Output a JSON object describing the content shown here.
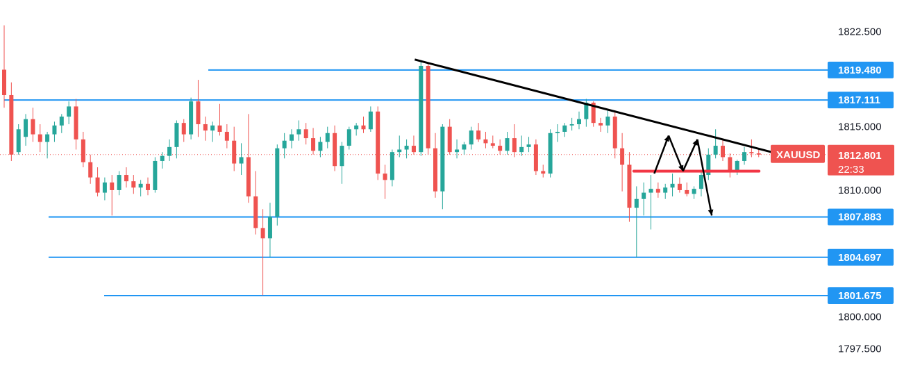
{
  "chart_data": {
    "type": "candlestick",
    "symbol": "XAUUSD",
    "last_price": 1812.801,
    "last_price_label": "1812.801",
    "countdown": "22:33",
    "colors": {
      "up": "#26a69a",
      "down": "#ef5350",
      "level": "#2196f3",
      "trend": "#000000",
      "neckline": "#f23645",
      "price_line": "#ef5350"
    },
    "y_axis": {
      "range": [
        1796.2,
        1825.0
      ],
      "ticks": [
        {
          "value": 1822.5,
          "label": "1822.500"
        },
        {
          "value": 1815.0,
          "label": "1815.000"
        },
        {
          "value": 1810.0,
          "label": "1810.000"
        },
        {
          "value": 1800.0,
          "label": "1800.000"
        },
        {
          "value": 1797.5,
          "label": "1797.500"
        }
      ]
    },
    "levels": [
      {
        "value": 1819.48,
        "label": "1819.480",
        "x_from_bar": 43
      },
      {
        "value": 1817.111,
        "label": "1817.111",
        "x_from_bar": 0
      },
      {
        "value": 1807.883,
        "label": "1807.883",
        "x_from_bar": 0
      },
      {
        "value": 1804.697,
        "label": "1804.697",
        "x_from_bar": 0
      },
      {
        "value": 1801.675,
        "label": "1801.675",
        "x_from_bar": 13
      }
    ],
    "candles": [
      [
        1819.5,
        1823.0,
        1816.5,
        1817.5
      ],
      [
        1817.5,
        1818.5,
        1812.3,
        1812.8
      ],
      [
        1813.0,
        1815.2,
        1812.8,
        1814.8
      ],
      [
        1814.2,
        1816.0,
        1813.5,
        1815.6
      ],
      [
        1815.6,
        1816.5,
        1813.8,
        1814.4
      ],
      [
        1814.4,
        1815.2,
        1813.0,
        1813.8
      ],
      [
        1813.8,
        1814.6,
        1812.5,
        1814.4
      ],
      [
        1814.4,
        1815.4,
        1813.8,
        1815.1
      ],
      [
        1815.1,
        1816.0,
        1814.5,
        1815.8
      ],
      [
        1815.8,
        1817.0,
        1815.2,
        1816.6
      ],
      [
        1816.6,
        1817.2,
        1813.2,
        1814.0
      ],
      [
        1814.0,
        1814.6,
        1811.8,
        1812.2
      ],
      [
        1812.2,
        1812.8,
        1810.5,
        1811.0
      ],
      [
        1811.0,
        1811.8,
        1809.5,
        1809.8
      ],
      [
        1809.8,
        1811.0,
        1809.2,
        1810.6
      ],
      [
        1810.6,
        1811.2,
        1808.0,
        1810.0
      ],
      [
        1810.0,
        1811.5,
        1809.6,
        1811.2
      ],
      [
        1811.2,
        1811.8,
        1810.2,
        1810.7
      ],
      [
        1810.7,
        1811.2,
        1809.7,
        1810.2
      ],
      [
        1810.2,
        1810.8,
        1809.5,
        1810.5
      ],
      [
        1810.5,
        1811.0,
        1809.6,
        1810.0
      ],
      [
        1810.0,
        1812.6,
        1809.8,
        1812.3
      ],
      [
        1812.3,
        1813.0,
        1811.7,
        1812.7
      ],
      [
        1812.7,
        1814.0,
        1812.3,
        1813.4
      ],
      [
        1813.4,
        1815.5,
        1812.5,
        1815.3
      ],
      [
        1815.3,
        1815.6,
        1813.8,
        1814.4
      ],
      [
        1814.4,
        1817.3,
        1814.0,
        1817.0
      ],
      [
        1817.0,
        1818.7,
        1814.2,
        1815.2
      ],
      [
        1815.2,
        1815.8,
        1813.9,
        1814.7
      ],
      [
        1814.7,
        1815.4,
        1813.8,
        1815.1
      ],
      [
        1815.1,
        1816.8,
        1814.3,
        1814.6
      ],
      [
        1814.6,
        1815.2,
        1813.3,
        1813.9
      ],
      [
        1813.9,
        1815.0,
        1811.5,
        1812.1
      ],
      [
        1812.1,
        1813.7,
        1811.2,
        1812.6
      ],
      [
        1812.6,
        1816.0,
        1809.0,
        1809.5
      ],
      [
        1809.5,
        1811.5,
        1806.5,
        1807.0
      ],
      [
        1807.0,
        1808.5,
        1801.7,
        1806.2
      ],
      [
        1806.2,
        1809.0,
        1804.7,
        1807.9
      ],
      [
        1807.9,
        1813.6,
        1807.2,
        1813.3
      ],
      [
        1813.3,
        1814.5,
        1812.5,
        1813.9
      ],
      [
        1813.9,
        1814.8,
        1813.3,
        1814.4
      ],
      [
        1814.4,
        1815.5,
        1813.9,
        1814.8
      ],
      [
        1814.8,
        1815.3,
        1813.6,
        1814.1
      ],
      [
        1814.1,
        1814.9,
        1812.8,
        1813.1
      ],
      [
        1813.1,
        1814.2,
        1812.6,
        1813.8
      ],
      [
        1813.8,
        1815.0,
        1813.3,
        1814.5
      ],
      [
        1814.5,
        1815.1,
        1811.5,
        1811.9
      ],
      [
        1811.9,
        1813.8,
        1810.5,
        1813.5
      ],
      [
        1813.5,
        1815.0,
        1813.2,
        1814.8
      ],
      [
        1814.8,
        1815.3,
        1814.3,
        1815.1
      ],
      [
        1815.1,
        1815.8,
        1814.5,
        1814.8
      ],
      [
        1814.8,
        1816.6,
        1814.6,
        1816.2
      ],
      [
        1816.2,
        1816.6,
        1810.8,
        1811.3
      ],
      [
        1811.3,
        1812.0,
        1809.3,
        1810.8
      ],
      [
        1810.8,
        1813.2,
        1810.3,
        1813.0
      ],
      [
        1813.0,
        1814.3,
        1812.6,
        1813.2
      ],
      [
        1813.2,
        1814.0,
        1812.5,
        1813.5
      ],
      [
        1813.5,
        1814.3,
        1812.8,
        1813.0
      ],
      [
        1813.0,
        1820.2,
        1812.7,
        1819.8
      ],
      [
        1819.8,
        1820.0,
        1812.8,
        1813.3
      ],
      [
        1813.3,
        1814.5,
        1809.4,
        1809.9
      ],
      [
        1809.9,
        1815.2,
        1808.5,
        1815.0
      ],
      [
        1815.0,
        1815.6,
        1812.8,
        1813.0
      ],
      [
        1813.0,
        1814.0,
        1812.5,
        1813.2
      ],
      [
        1813.2,
        1813.8,
        1812.8,
        1813.6
      ],
      [
        1813.6,
        1815.0,
        1813.2,
        1814.7
      ],
      [
        1814.7,
        1815.3,
        1813.8,
        1814.0
      ],
      [
        1814.0,
        1814.6,
        1813.3,
        1813.7
      ],
      [
        1813.7,
        1814.3,
        1813.3,
        1813.5
      ],
      [
        1813.5,
        1814.0,
        1812.8,
        1813.1
      ],
      [
        1813.1,
        1814.6,
        1812.8,
        1814.1
      ],
      [
        1814.1,
        1815.2,
        1812.6,
        1813.0
      ],
      [
        1813.0,
        1814.3,
        1812.7,
        1813.4
      ],
      [
        1813.4,
        1814.2,
        1813.0,
        1813.6
      ],
      [
        1813.6,
        1814.0,
        1811.2,
        1811.5
      ],
      [
        1811.5,
        1812.0,
        1811.0,
        1811.3
      ],
      [
        1811.3,
        1814.8,
        1811.0,
        1814.5
      ],
      [
        1814.5,
        1815.2,
        1813.8,
        1814.6
      ],
      [
        1814.6,
        1815.3,
        1814.2,
        1815.1
      ],
      [
        1815.1,
        1815.7,
        1814.7,
        1815.2
      ],
      [
        1815.2,
        1816.2,
        1814.8,
        1815.6
      ],
      [
        1815.6,
        1817.2,
        1815.0,
        1816.9
      ],
      [
        1816.9,
        1817.0,
        1815.0,
        1815.3
      ],
      [
        1815.3,
        1815.7,
        1814.6,
        1815.1
      ],
      [
        1815.1,
        1816.3,
        1814.5,
        1815.8
      ],
      [
        1815.8,
        1816.3,
        1812.5,
        1813.3
      ],
      [
        1813.3,
        1814.5,
        1809.9,
        1812.0
      ],
      [
        1812.0,
        1813.0,
        1807.5,
        1808.6
      ],
      [
        1808.6,
        1810.3,
        1804.7,
        1809.3
      ],
      [
        1809.3,
        1810.6,
        1808.0,
        1809.8
      ],
      [
        1809.8,
        1811.2,
        1806.9,
        1810.1
      ],
      [
        1810.1,
        1810.6,
        1809.4,
        1809.8
      ],
      [
        1809.8,
        1810.5,
        1809.3,
        1810.2
      ],
      [
        1810.2,
        1811.3,
        1809.5,
        1810.5
      ],
      [
        1810.5,
        1811.0,
        1809.8,
        1810.0
      ],
      [
        1810.0,
        1810.6,
        1809.5,
        1809.7
      ],
      [
        1809.7,
        1810.3,
        1809.3,
        1810.1
      ],
      [
        1810.1,
        1811.5,
        1809.5,
        1811.2
      ],
      [
        1811.2,
        1813.3,
        1810.8,
        1812.8
      ],
      [
        1812.8,
        1814.8,
        1812.5,
        1813.5
      ],
      [
        1813.5,
        1814.0,
        1812.3,
        1812.6
      ],
      [
        1812.6,
        1812.9,
        1811.0,
        1811.5
      ],
      [
        1811.5,
        1812.4,
        1811.2,
        1812.3
      ],
      [
        1812.3,
        1813.4,
        1812.0,
        1813.0
      ],
      [
        1813.0,
        1814.0,
        1812.6,
        1812.9
      ],
      [
        1812.9,
        1813.2,
        1812.6,
        1812.8
      ]
    ],
    "annotations": {
      "trendline": [
        [
          61,
          1820.3
        ],
        [
          112,
          1812.8
        ]
      ],
      "neckline": [
        [
          94,
          1811.5
        ],
        [
          112,
          1811.5
        ]
      ],
      "projection": [
        [
          [
            98,
            1811.3
          ],
          [
            100,
            1814.3
          ],
          [
            102,
            1811.5
          ],
          [
            104,
            1814.0
          ],
          [
            106,
            1808.0
          ]
        ]
      ]
    }
  }
}
